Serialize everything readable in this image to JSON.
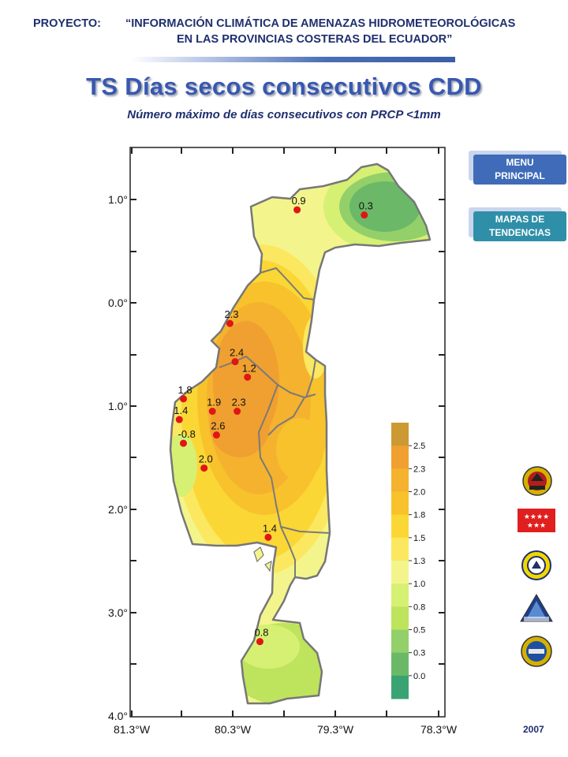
{
  "header": {
    "project_label": "PROYECTO:",
    "project_line1": "“INFORMACIÓN CLIMÁTICA DE AMENAZAS HIDROMETEOROLÓGICAS",
    "project_line2": "EN    LAS PROVINCIAS COSTERAS DEL ECUADOR”"
  },
  "title": "TS Días secos consecutivos CDD",
  "subtitle": "Número máximo de días consecutivos con PRCP <1mm",
  "nav": {
    "menu_line1": "MENU",
    "menu_line2": "PRINCIPAL",
    "trends_line1": "MAPAS DE",
    "trends_line2": "TENDENCIAS"
  },
  "year": "2007",
  "map": {
    "lat_labels": [
      "1.0°",
      "0.0°",
      "1.0°",
      "2.0°",
      "3.0°",
      "4.0°"
    ],
    "lon_labels": [
      "81.3°W",
      "80.3°W",
      "79.3°W",
      "78.3°W"
    ],
    "stations": [
      {
        "label": "0.9",
        "lon": -79.7,
        "lat": 0.9
      },
      {
        "label": "0.3",
        "lon": -79.05,
        "lat": 0.85
      },
      {
        "label": "2.3",
        "lon": -80.35,
        "lat": -0.2
      },
      {
        "label": "2.4",
        "lon": -80.3,
        "lat": -0.57
      },
      {
        "label": "1.2",
        "lon": -80.18,
        "lat": -0.72
      },
      {
        "label": "1.8",
        "lon": -80.8,
        "lat": -0.93
      },
      {
        "label": "1.9",
        "lon": -80.52,
        "lat": -1.05
      },
      {
        "label": "2.3",
        "lon": -80.28,
        "lat": -1.05
      },
      {
        "label": "1.4",
        "lon": -80.84,
        "lat": -1.13
      },
      {
        "label": "2.6",
        "lon": -80.48,
        "lat": -1.28
      },
      {
        "label": "-0.8",
        "lon": -80.8,
        "lat": -1.36
      },
      {
        "label": "2.0",
        "lon": -80.6,
        "lat": -1.6
      },
      {
        "label": "1.4",
        "lon": -79.98,
        "lat": -2.27
      },
      {
        "label": "0.8",
        "lon": -80.06,
        "lat": -3.28
      }
    ]
  },
  "legend": {
    "labels": [
      "2.5",
      "2.3",
      "2.0",
      "1.8",
      "1.5",
      "1.3",
      "1.0",
      "0.8",
      "0.5",
      "0.3",
      "0.0"
    ],
    "colors": [
      "#cc9933",
      "#f0a030",
      "#f5b22e",
      "#f8c22c",
      "#fbd735",
      "#fbe860",
      "#f3f58c",
      "#d6f073",
      "#bde45c",
      "#93d06a",
      "#6bb968",
      "#3aa373"
    ]
  }
}
